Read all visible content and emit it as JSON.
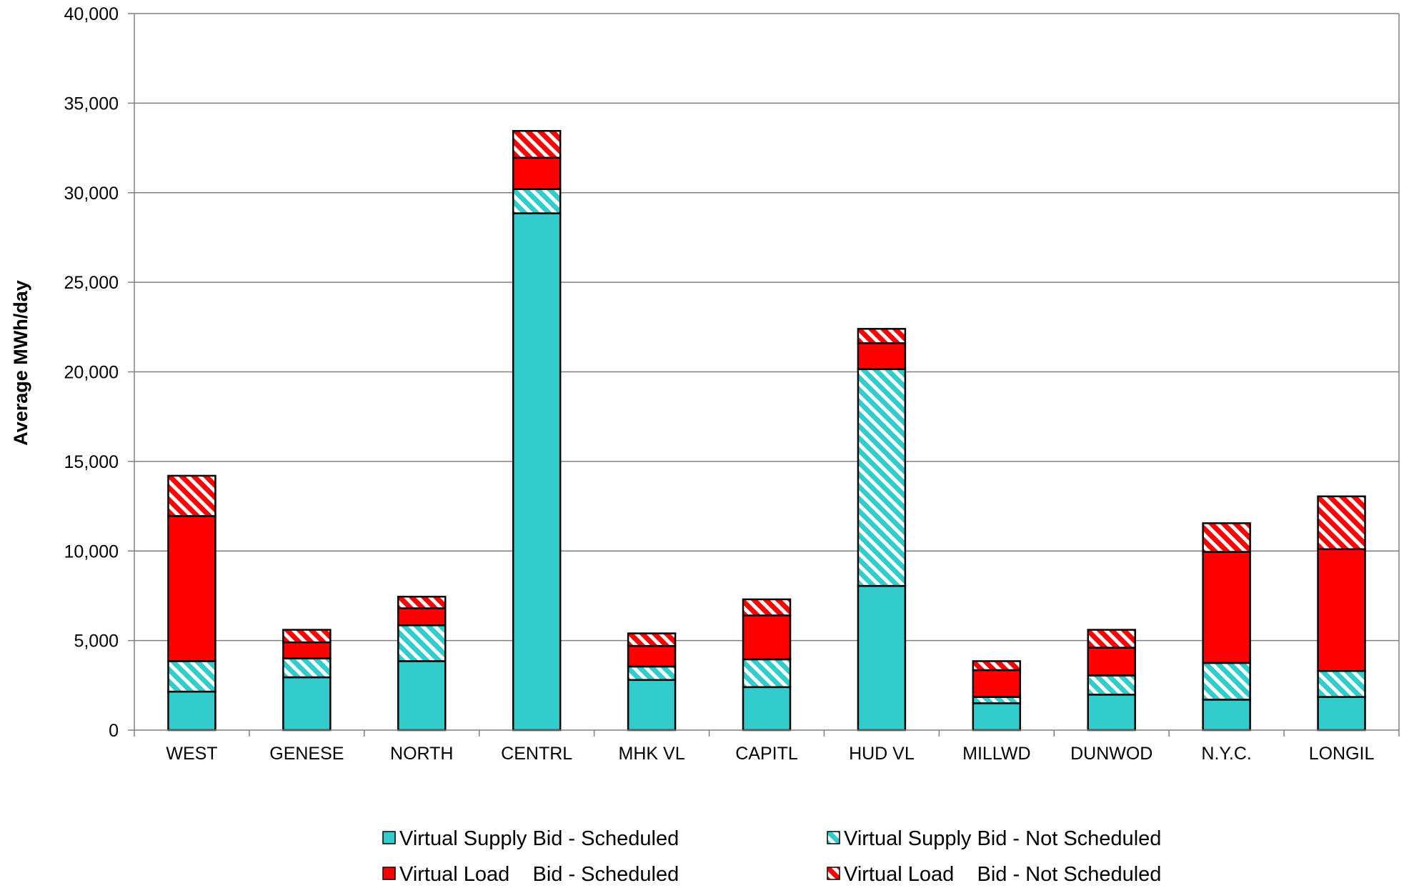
{
  "chart_data": {
    "type": "bar",
    "stacked": true,
    "title": "",
    "xlabel": "",
    "ylabel": "Average MWh/day",
    "ylim": [
      0,
      40000
    ],
    "yticks": [
      0,
      5000,
      10000,
      15000,
      20000,
      25000,
      30000,
      35000,
      40000
    ],
    "ytick_labels": [
      "0",
      "5,000",
      "10,000",
      "15,000",
      "20,000",
      "25,000",
      "30,000",
      "35,000",
      "40,000"
    ],
    "grid": true,
    "legend_position": "bottom",
    "categories": [
      "WEST",
      "GENESE",
      "NORTH",
      "CENTRL",
      "MHK VL",
      "CAPITL",
      "HUD VL",
      "MILLWD",
      "DUNWOD",
      "N.Y.C.",
      "LONGIL"
    ],
    "series": [
      {
        "name": "Virtual Supply Bid - Scheduled",
        "color": "#33CCCC",
        "pattern": "solid",
        "values": [
          2150,
          2950,
          3850,
          28850,
          2800,
          2400,
          8050,
          1500,
          1980,
          1700,
          1850
        ]
      },
      {
        "name": "Virtual Supply Bid - Not Scheduled",
        "color": "#33CCCC",
        "pattern": "hatched",
        "values": [
          1700,
          1050,
          2000,
          1350,
          750,
          1550,
          12100,
          350,
          1070,
          2050,
          1450
        ]
      },
      {
        "name": "Virtual Load    Bid - Scheduled",
        "color": "#FF0000",
        "pattern": "solid",
        "values": [
          8100,
          900,
          950,
          1750,
          1150,
          2450,
          1450,
          1500,
          1550,
          6200,
          6800
        ]
      },
      {
        "name": "Virtual Load    Bid - Not Scheduled",
        "color": "#FF0000",
        "pattern": "hatched",
        "values": [
          2250,
          700,
          650,
          1500,
          700,
          900,
          800,
          500,
          1000,
          1600,
          2950
        ]
      }
    ]
  }
}
